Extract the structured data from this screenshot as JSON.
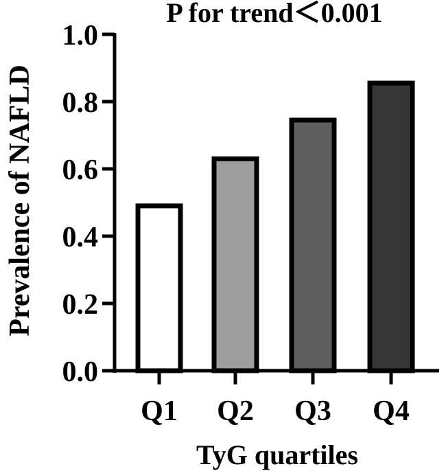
{
  "chart_data": {
    "type": "bar",
    "title": "P for trend＜0.001",
    "xlabel": "TyG quartiles",
    "ylabel": "Prevalence of NAFLD",
    "categories": [
      "Q1",
      "Q2",
      "Q3",
      "Q4"
    ],
    "values": [
      0.49,
      0.63,
      0.745,
      0.855
    ],
    "ylim": [
      0,
      1.0
    ],
    "yticks": [
      "0.0",
      "0.2",
      "0.4",
      "0.6",
      "0.8",
      "1.0"
    ],
    "bar_colors": [
      "#ffffff",
      "#9e9e9e",
      "#5e5e5e",
      "#363636"
    ],
    "bar_edge_color": "#000000",
    "grid": false,
    "legend": "none"
  }
}
